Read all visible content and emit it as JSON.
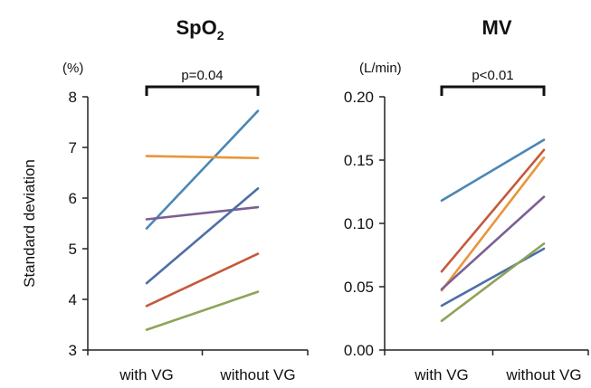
{
  "chart_data": [
    {
      "type": "line",
      "title": "SpO",
      "title_subscript": "2",
      "ylabel": "Standard deviation",
      "unit": "(%)",
      "significance": "p=0.04",
      "categories": [
        "with VG",
        "without VG"
      ],
      "ylim": [
        3,
        8
      ],
      "yticks": [
        "3",
        "4",
        "5",
        "6",
        "7",
        "8"
      ],
      "ytick_values": [
        3,
        4,
        5,
        6,
        7,
        8
      ],
      "series": [
        {
          "values": [
            5.4,
            7.72
          ],
          "color": "#4a87b5"
        },
        {
          "values": [
            6.83,
            6.79
          ],
          "color": "#e8963a"
        },
        {
          "values": [
            5.58,
            5.82
          ],
          "color": "#7b5f93"
        },
        {
          "values": [
            4.32,
            6.19
          ],
          "color": "#4e6ea8"
        },
        {
          "values": [
            3.87,
            4.9
          ],
          "color": "#c45a3b"
        },
        {
          "values": [
            3.4,
            4.15
          ],
          "color": "#8fa35a"
        }
      ]
    },
    {
      "type": "line",
      "title": "MV",
      "ylabel": "",
      "unit": "(L/min)",
      "significance": "p<0.01",
      "categories": [
        "with VG",
        "without VG"
      ],
      "ylim": [
        0,
        0.2
      ],
      "yticks": [
        "0.00",
        "0.05",
        "0.10",
        "0.15",
        "0.20"
      ],
      "ytick_values": [
        0,
        0.05,
        0.1,
        0.15,
        0.2
      ],
      "series": [
        {
          "values": [
            0.118,
            0.166
          ],
          "color": "#4a87b5"
        },
        {
          "values": [
            0.062,
            0.158
          ],
          "color": "#c45a3b"
        },
        {
          "values": [
            0.047,
            0.152
          ],
          "color": "#e8963a"
        },
        {
          "values": [
            0.048,
            0.121
          ],
          "color": "#7b5f93"
        },
        {
          "values": [
            0.035,
            0.08
          ],
          "color": "#4e6ea8"
        },
        {
          "values": [
            0.023,
            0.084
          ],
          "color": "#8fa35a"
        }
      ]
    }
  ]
}
